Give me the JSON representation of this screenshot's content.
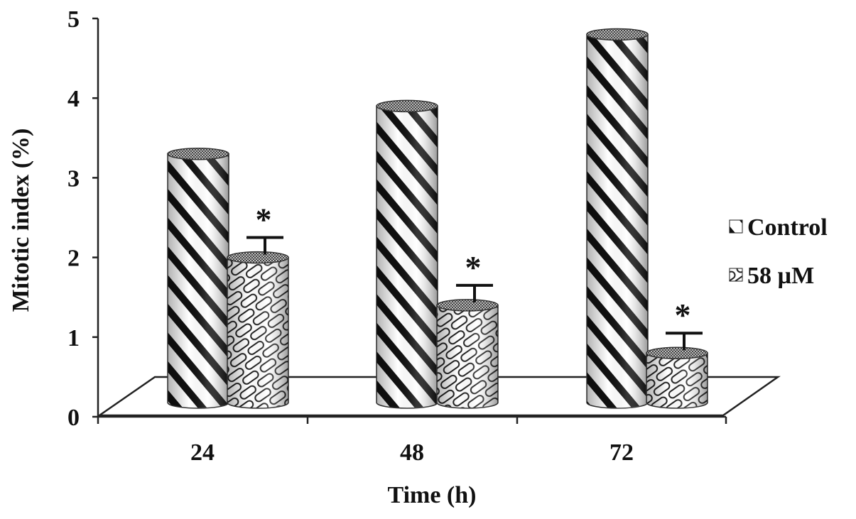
{
  "chart_data": {
    "type": "bar",
    "style": "3d-cylinder",
    "categories": [
      "24",
      "48",
      "72"
    ],
    "series": [
      {
        "name": "Control",
        "values": [
          3.3,
          3.9,
          4.8
        ]
      },
      {
        "name": "58 µM",
        "values": [
          2.0,
          1.4,
          0.8
        ],
        "error_plus": [
          0.25,
          0.25,
          0.25
        ]
      }
    ],
    "significance": [
      {
        "category": "24",
        "series": "58 µM",
        "label": "*"
      },
      {
        "category": "48",
        "series": "58 µM",
        "label": "*"
      },
      {
        "category": "72",
        "series": "58 µM",
        "label": "*"
      }
    ],
    "xlabel": "Time (h)",
    "ylabel": "Mitotic index (%)",
    "ylim": [
      0,
      5
    ],
    "yticks": [
      "0",
      "1",
      "2",
      "3",
      "4",
      "5"
    ],
    "legend": {
      "position": "right",
      "entries": [
        "Control",
        "58 µM"
      ]
    },
    "colors": {
      "control_stripe": "#111111",
      "treated_stripe": "#222222",
      "background": "#ffffff"
    },
    "grid": false
  }
}
